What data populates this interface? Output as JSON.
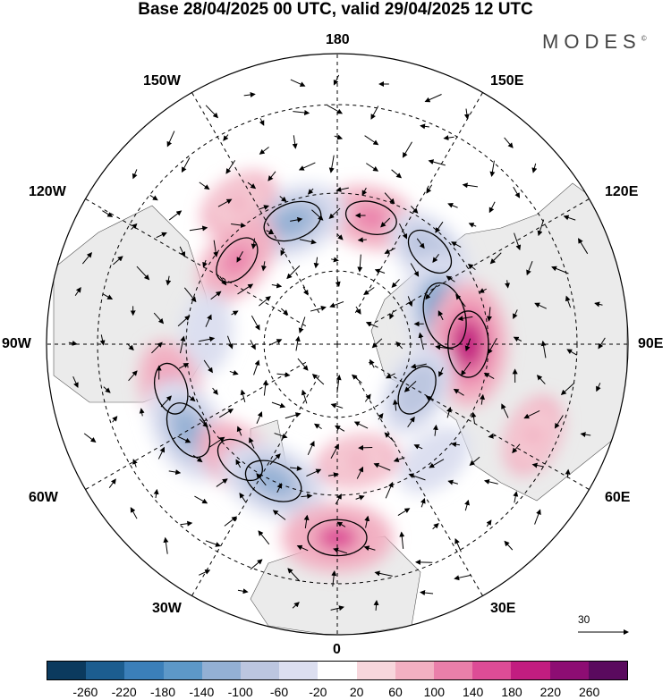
{
  "title": "Base 28/04/2025 00 UTC, valid 29/04/2025 12 UTC",
  "brand": "MODES",
  "brand_mark": "©",
  "longitude_labels": {
    "top": "180",
    "top_left": "150W",
    "top_right": "150E",
    "upper_left": "120W",
    "upper_right": "120E",
    "left": "90W",
    "right": "90E",
    "lower_left": "60W",
    "lower_right": "60E",
    "bottom_left": "30W",
    "bottom_right": "30E",
    "bottom": "0"
  },
  "vector_scale": "30",
  "colorbar": {
    "labels": [
      "-260",
      "-220",
      "-180",
      "-140",
      "-100",
      "-60",
      "-20",
      "20",
      "60",
      "100",
      "140",
      "180",
      "220",
      "260"
    ],
    "colors": [
      "#0b3a5e",
      "#1c5d8f",
      "#3b7fb9",
      "#5d98c8",
      "#93b0d4",
      "#bcc6e0",
      "#dcdff0",
      "#ffffff",
      "#f7d6dc",
      "#f2b0c2",
      "#ea7faa",
      "#dd4c96",
      "#c21d80",
      "#8d0d73",
      "#5a0a5e"
    ]
  },
  "anomaly_centers": [
    {
      "lon": 165,
      "lat": 55,
      "value": 100
    },
    {
      "lon": 135,
      "lat": 55,
      "value": -100
    },
    {
      "lon": -160,
      "lat": 55,
      "value": -140
    },
    {
      "lon": -145,
      "lat": 45,
      "value": 60
    },
    {
      "lon": -130,
      "lat": 55,
      "value": 100
    },
    {
      "lon": 105,
      "lat": 60,
      "value": -180
    },
    {
      "lon": 90,
      "lat": 55,
      "value": 180
    },
    {
      "lon": 60,
      "lat": 65,
      "value": -100
    },
    {
      "lon": -95,
      "lat": 55,
      "value": -60
    },
    {
      "lon": -75,
      "lat": 45,
      "value": 100
    },
    {
      "lon": -60,
      "lat": 45,
      "value": -140
    },
    {
      "lon": -40,
      "lat": 50,
      "value": 100
    },
    {
      "lon": -25,
      "lat": 50,
      "value": -140
    },
    {
      "lon": 0,
      "lat": 40,
      "value": 140
    },
    {
      "lon": 10,
      "lat": 58,
      "value": 60
    },
    {
      "lon": 40,
      "lat": 50,
      "value": -60
    },
    {
      "lon": 65,
      "lat": 35,
      "value": 60
    }
  ]
}
